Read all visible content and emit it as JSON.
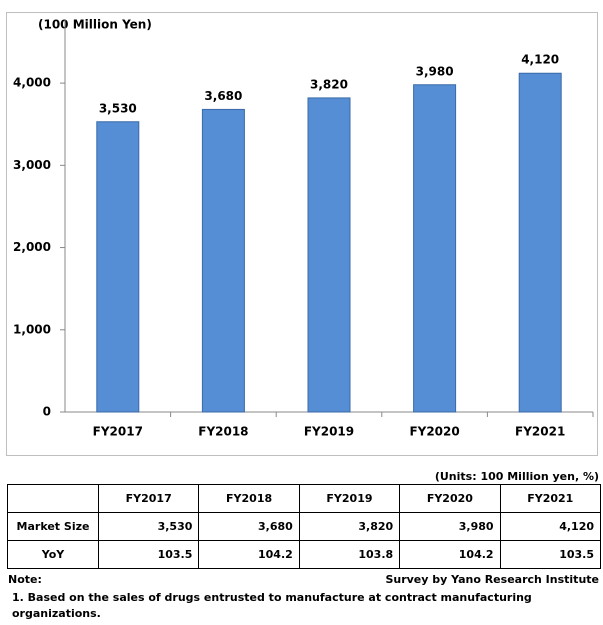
{
  "chart_data": {
    "type": "bar",
    "y_label": "(100 Million Yen)",
    "categories": [
      "FY2017",
      "FY2018",
      "FY2019",
      "FY2020",
      "FY2021"
    ],
    "values": [
      3530,
      3680,
      3820,
      3980,
      4120
    ],
    "value_labels": [
      "3,530",
      "3,680",
      "3,820",
      "3,980",
      "4,120"
    ],
    "color": "#558ed5",
    "ylim": [
      0,
      4500
    ],
    "yticks": [
      0,
      {
        "value": 1000,
        "label": "1,000"
      },
      {
        "value": 2000,
        "label": "2,000"
      },
      {
        "value": 3000,
        "label": "3,000"
      },
      {
        "value": 4000,
        "label": "4,000"
      }
    ],
    "grid": false
  },
  "table": {
    "units": "(Units: 100 Million yen, %)",
    "header": [
      "FY2017",
      "FY2018",
      "FY2019",
      "FY2020",
      "FY2021"
    ],
    "rows": [
      [
        "Market Size",
        "3,530",
        "3,680",
        "3,820",
        "3,980",
        "4,120"
      ],
      [
        "YoY",
        "103.5",
        "104.2",
        "103.8",
        "104.2",
        "103.5"
      ]
    ]
  },
  "notes": {
    "title": "Note:",
    "source": "Survey by Yano Research Institute",
    "items": [
      "1. Based on the sales of drugs entrusted to manufacture at contract manufacturing organizations."
    ]
  }
}
